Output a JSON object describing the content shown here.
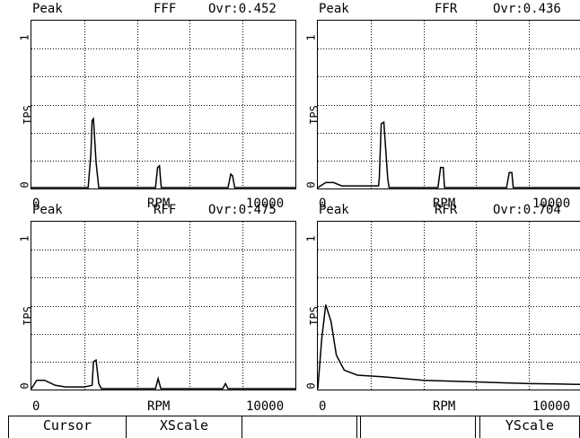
{
  "panels": [
    {
      "header": {
        "mode": "Peak",
        "channel": "FFF",
        "ovr": "Ovr:0.452"
      },
      "ylabel": "IPS",
      "y_ticks": {
        "top": "1",
        "bottom": "0"
      },
      "x_ticks": {
        "left": "0",
        "mid": "RPM",
        "right": "10000"
      }
    },
    {
      "header": {
        "mode": "Peak",
        "channel": "FFR",
        "ovr": "Ovr:0.436"
      },
      "ylabel": "IPS",
      "y_ticks": {
        "top": "1",
        "bottom": "0"
      },
      "x_ticks": {
        "left": "0",
        "mid": "RPM",
        "right": "10000"
      }
    },
    {
      "header": {
        "mode": "Peak",
        "channel": "RFF",
        "ovr": "Ovr:0.475"
      },
      "ylabel": "IPS",
      "y_ticks": {
        "top": "1",
        "bottom": "0"
      },
      "x_ticks": {
        "left": "0",
        "mid": "RPM",
        "right": "10000"
      }
    },
    {
      "header": {
        "mode": "Peak",
        "channel": "RFR",
        "ovr": "Ovr:0.704"
      },
      "ylabel": "IPS",
      "y_ticks": {
        "top": "1",
        "bottom": "0"
      },
      "x_ticks": {
        "left": "0",
        "mid": "RPM",
        "right": "10000"
      }
    }
  ],
  "softkeys": [
    "Cursor",
    "XScale",
    "",
    "",
    "",
    "",
    "YScale"
  ],
  "chart_data": [
    {
      "type": "line",
      "title": "FFF",
      "xlabel": "RPM",
      "ylabel": "IPS",
      "xlim": [
        0,
        10000
      ],
      "ylim": [
        0,
        1
      ],
      "grid": true,
      "x": [
        0,
        2000,
        2150,
        2250,
        2300,
        2350,
        2450,
        2550,
        4700,
        4780,
        4850,
        4920,
        7450,
        7550,
        7620,
        7700,
        10000
      ],
      "y": [
        0,
        0,
        0,
        0.2,
        0.4,
        0.41,
        0.15,
        0,
        0,
        0.12,
        0.13,
        0,
        0,
        0.08,
        0.07,
        0,
        0
      ]
    },
    {
      "type": "line",
      "title": "FFR",
      "xlabel": "RPM",
      "ylabel": "IPS",
      "xlim": [
        0,
        10000
      ],
      "ylim": [
        0,
        1
      ],
      "grid": true,
      "x": [
        0,
        300,
        600,
        900,
        2300,
        2330,
        2400,
        2500,
        2650,
        2700,
        4550,
        4650,
        4750,
        4800,
        7150,
        7250,
        7350,
        7400,
        10000
      ],
      "y": [
        0,
        0.03,
        0.03,
        0.01,
        0.01,
        0.06,
        0.38,
        0.39,
        0.05,
        0,
        0,
        0.12,
        0.12,
        0,
        0,
        0.09,
        0.09,
        0,
        0
      ]
    },
    {
      "type": "line",
      "title": "RFF",
      "xlabel": "RPM",
      "ylabel": "IPS",
      "xlim": [
        0,
        10000
      ],
      "ylim": [
        0,
        1
      ],
      "grid": true,
      "x": [
        0,
        200,
        500,
        900,
        1300,
        2000,
        2300,
        2350,
        2450,
        2550,
        2650,
        4700,
        4800,
        4900,
        7250,
        7350,
        7450,
        10000
      ],
      "y": [
        0,
        0.05,
        0.05,
        0.02,
        0.01,
        0.01,
        0.02,
        0.16,
        0.17,
        0.03,
        0,
        0,
        0.06,
        0,
        0,
        0.03,
        0,
        0
      ]
    },
    {
      "type": "line",
      "title": "RFR",
      "xlabel": "RPM",
      "ylabel": "IPS",
      "xlim": [
        0,
        10000
      ],
      "ylim": [
        0,
        1
      ],
      "grid": true,
      "x": [
        0,
        150,
        300,
        500,
        700,
        1000,
        1500,
        2500,
        4000,
        5000,
        6000,
        7000,
        8000,
        9000,
        10000
      ],
      "y": [
        0,
        0.3,
        0.5,
        0.4,
        0.2,
        0.11,
        0.08,
        0.07,
        0.05,
        0.045,
        0.04,
        0.035,
        0.03,
        0.028,
        0.025
      ]
    }
  ]
}
